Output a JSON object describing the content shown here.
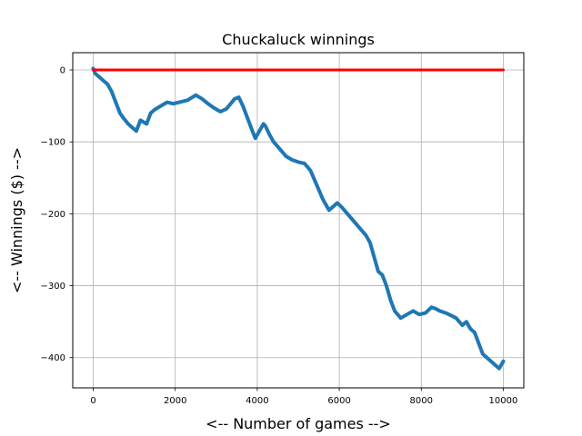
{
  "chart_data": {
    "type": "line",
    "title": "Chuckaluck winnings",
    "xlabel": "<-- Number of games -->",
    "ylabel": "<-- Winnings ($) -->",
    "xlim": [
      -500,
      10500
    ],
    "ylim": [
      -442,
      24
    ],
    "grid": true,
    "xticks": [
      0,
      2000,
      4000,
      6000,
      8000,
      10000
    ],
    "yticks": [
      0,
      -100,
      -200,
      -300,
      -400
    ],
    "series": [
      {
        "color": "#ff0000",
        "points": [
          [
            0,
            0
          ],
          [
            10000,
            0
          ]
        ]
      },
      {
        "color": "#1f77b4",
        "points": [
          [
            0,
            2
          ],
          [
            50,
            -5
          ],
          [
            150,
            -10
          ],
          [
            250,
            -15
          ],
          [
            350,
            -20
          ],
          [
            450,
            -30
          ],
          [
            550,
            -45
          ],
          [
            650,
            -60
          ],
          [
            750,
            -68
          ],
          [
            850,
            -75
          ],
          [
            950,
            -80
          ],
          [
            1050,
            -85
          ],
          [
            1150,
            -70
          ],
          [
            1300,
            -75
          ],
          [
            1400,
            -60
          ],
          [
            1500,
            -55
          ],
          [
            1650,
            -50
          ],
          [
            1800,
            -45
          ],
          [
            1950,
            -47
          ],
          [
            2100,
            -45
          ],
          [
            2300,
            -42
          ],
          [
            2500,
            -35
          ],
          [
            2650,
            -40
          ],
          [
            2800,
            -47
          ],
          [
            2950,
            -53
          ],
          [
            3100,
            -58
          ],
          [
            3250,
            -54
          ],
          [
            3350,
            -47
          ],
          [
            3450,
            -40
          ],
          [
            3550,
            -38
          ],
          [
            3650,
            -50
          ],
          [
            3750,
            -65
          ],
          [
            3850,
            -80
          ],
          [
            3950,
            -95
          ],
          [
            4050,
            -85
          ],
          [
            4150,
            -75
          ],
          [
            4200,
            -78
          ],
          [
            4300,
            -90
          ],
          [
            4400,
            -100
          ],
          [
            4550,
            -110
          ],
          [
            4700,
            -120
          ],
          [
            4850,
            -125
          ],
          [
            5000,
            -128
          ],
          [
            5150,
            -130
          ],
          [
            5300,
            -140
          ],
          [
            5450,
            -160
          ],
          [
            5600,
            -180
          ],
          [
            5750,
            -195
          ],
          [
            5850,
            -190
          ],
          [
            5950,
            -185
          ],
          [
            6050,
            -190
          ],
          [
            6200,
            -200
          ],
          [
            6350,
            -210
          ],
          [
            6500,
            -220
          ],
          [
            6650,
            -230
          ],
          [
            6750,
            -240
          ],
          [
            6850,
            -260
          ],
          [
            6950,
            -280
          ],
          [
            7050,
            -285
          ],
          [
            7150,
            -300
          ],
          [
            7250,
            -320
          ],
          [
            7350,
            -335
          ],
          [
            7500,
            -345
          ],
          [
            7650,
            -340
          ],
          [
            7800,
            -335
          ],
          [
            7950,
            -340
          ],
          [
            8100,
            -338
          ],
          [
            8250,
            -330
          ],
          [
            8350,
            -332
          ],
          [
            8450,
            -335
          ],
          [
            8600,
            -338
          ],
          [
            8750,
            -342
          ],
          [
            8850,
            -345
          ],
          [
            9000,
            -355
          ],
          [
            9100,
            -350
          ],
          [
            9200,
            -360
          ],
          [
            9300,
            -365
          ],
          [
            9400,
            -380
          ],
          [
            9500,
            -395
          ],
          [
            9600,
            -400
          ],
          [
            9700,
            -405
          ],
          [
            9800,
            -410
          ],
          [
            9900,
            -415
          ],
          [
            10000,
            -405
          ]
        ]
      }
    ]
  }
}
